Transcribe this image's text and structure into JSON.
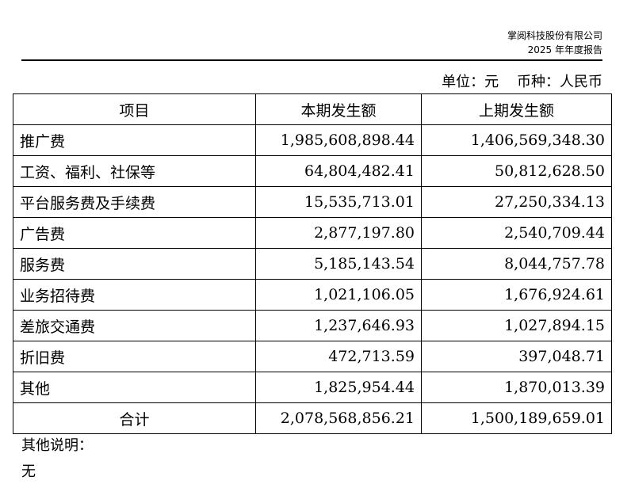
{
  "header": {
    "company": "掌阅科技股份有限公司",
    "report": "2025 年年度报告"
  },
  "unit_line": "单位：元    币种：人民币",
  "table": {
    "headers": [
      "项目",
      "本期发生额",
      "上期发生额"
    ],
    "rows": [
      {
        "item": "推广费",
        "current": "1,985,608,898.44",
        "previous": "1,406,569,348.30"
      },
      {
        "item": "工资、福利、社保等",
        "current": "64,804,482.41",
        "previous": "50,812,628.50"
      },
      {
        "item": "平台服务费及手续费",
        "current": "15,535,713.01",
        "previous": "27,250,334.13"
      },
      {
        "item": "广告费",
        "current": "2,877,197.80",
        "previous": "2,540,709.44"
      },
      {
        "item": "服务费",
        "current": "5,185,143.54",
        "previous": "8,044,757.78"
      },
      {
        "item": "业务招待费",
        "current": "1,021,106.05",
        "previous": "1,676,924.61"
      },
      {
        "item": "差旅交通费",
        "current": "1,237,646.93",
        "previous": "1,027,894.15"
      },
      {
        "item": "折旧费",
        "current": "472,713.59",
        "previous": "397,048.71"
      },
      {
        "item": "其他",
        "current": "1,825,954.44",
        "previous": "1,870,013.39"
      }
    ],
    "total": {
      "item": "合计",
      "current": "2,078,568,856.21",
      "previous": "1,500,189,659.01"
    }
  },
  "notes": {
    "label": "其他说明：",
    "text": "无"
  }
}
